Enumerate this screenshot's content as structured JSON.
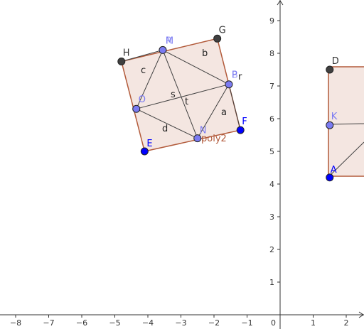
{
  "axes": {
    "x_ticks": [
      "−8",
      "−7",
      "−6",
      "−5",
      "−4",
      "−3",
      "−2",
      "−1",
      "1",
      "2"
    ],
    "y_ticks": [
      "1",
      "2",
      "3",
      "4",
      "5",
      "6",
      "7",
      "8",
      "9"
    ],
    "origin": "0"
  },
  "colors": {
    "fill": "#f2e2dc",
    "edge": "#b25a3a",
    "blue_point": "#0000ff",
    "light_point": "#7b7bf2",
    "dark_point": "#404040",
    "inner_line": "#404040"
  },
  "square_left": {
    "polygon": "poly2",
    "vertices": [
      {
        "id": "H",
        "x": -4.8,
        "y": 7.75,
        "label": "H",
        "style": "dark"
      },
      {
        "id": "G",
        "x": -1.9,
        "y": 8.45,
        "label": "G",
        "style": "dark"
      },
      {
        "id": "F",
        "x": -1.2,
        "y": 5.65,
        "label": "F",
        "style": "blue"
      },
      {
        "id": "E",
        "x": -4.1,
        "y": 5.0,
        "label": "E",
        "style": "blue"
      }
    ],
    "inner_points": [
      {
        "id": "M",
        "x": -3.55,
        "y": 8.1,
        "label": "M",
        "label2": "R",
        "style": "light"
      },
      {
        "id": "P",
        "x": -1.55,
        "y": 7.05,
        "label": "P",
        "label2": "B",
        "style": "light"
      },
      {
        "id": "N",
        "x": -2.5,
        "y": 5.4,
        "label": "N",
        "style": "light"
      },
      {
        "id": "O",
        "x": -4.35,
        "y": 6.3,
        "label": "O",
        "style": "light"
      }
    ],
    "segment_labels": {
      "a": "a",
      "b": "b",
      "c": "c",
      "d": "d",
      "r": "r",
      "s": "s",
      "t": "t"
    }
  },
  "square_right": {
    "points": [
      {
        "id": "D",
        "x": 1.5,
        "y": 7.5,
        "label": "D",
        "style": "dark"
      },
      {
        "id": "K",
        "x": 1.5,
        "y": 5.8,
        "label": "K",
        "style": "light"
      },
      {
        "id": "A",
        "x": 1.5,
        "y": 4.2,
        "label": "A",
        "style": "blue"
      }
    ]
  }
}
